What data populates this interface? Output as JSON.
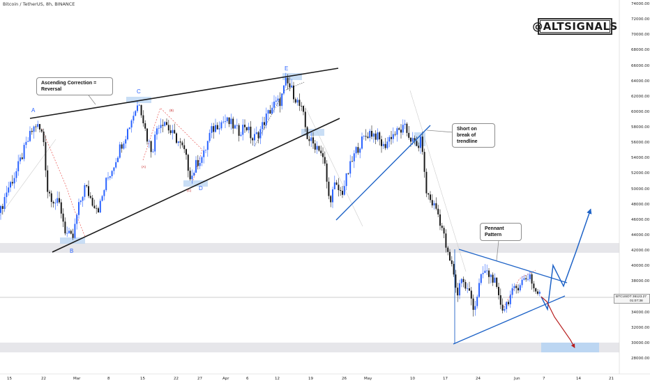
{
  "symbol": "Bitcoin / TetherUS, 8h, BINANCE",
  "brand": "@ALTSIGNALS",
  "annotations": {
    "ascending_correction": "Ascending Correction = Reversal",
    "short_break": "Short on break of trendline",
    "pennant": "Pennant Pattern"
  },
  "wave_labels": {
    "a": "A",
    "b": "B",
    "c": "C",
    "d": "D",
    "e": "E"
  },
  "sub_wave_labels": {
    "a": "(A)",
    "b": "(B)",
    "c": "(C)"
  },
  "price_tag": {
    "symbol": "BTCUSDT",
    "price": "36123.27",
    "countdown": "01:07:38"
  },
  "colors": {
    "up": "#2962ff",
    "down": "#1a1a1a",
    "trendline": "#1a1a1a",
    "pennant": "#1565c0",
    "bear": "#b71c1c",
    "zone": "#e6e6ea",
    "target_zone": "#bcd6f2"
  },
  "chart_data": {
    "type": "candlestick",
    "x_ticks": [
      "15",
      "22",
      "Mar",
      "8",
      "15",
      "22",
      "27",
      "Apr",
      "6",
      "12",
      "19",
      "26",
      "May",
      "10",
      "17",
      "24",
      "Jun",
      "7",
      "14",
      "21"
    ],
    "y_ticks": [
      "74000.00",
      "72000.00",
      "70000.00",
      "68000.00",
      "66000.00",
      "64000.00",
      "62000.00",
      "60000.00",
      "58000.00",
      "56000.00",
      "54000.00",
      "52000.00",
      "50000.00",
      "48000.00",
      "46000.00",
      "44000.00",
      "42000.00",
      "40000.00",
      "38000.00",
      "36000.00",
      "34000.00",
      "32000.00",
      "30000.00",
      "28000.00"
    ],
    "ylim": [
      27000,
      74800
    ],
    "last_price": 36123.27,
    "path": [
      [
        0,
        47000
      ],
      [
        10,
        50000
      ],
      [
        22,
        52000
      ],
      [
        34,
        55000
      ],
      [
        45,
        57500
      ],
      [
        52,
        58500
      ],
      [
        62,
        57000
      ],
      [
        68,
        50000
      ],
      [
        78,
        48500
      ],
      [
        86,
        48000
      ],
      [
        94,
        44500
      ],
      [
        104,
        43500
      ],
      [
        112,
        47500
      ],
      [
        122,
        50500
      ],
      [
        132,
        48500
      ],
      [
        142,
        47500
      ],
      [
        152,
        51000
      ],
      [
        162,
        53000
      ],
      [
        172,
        55500
      ],
      [
        182,
        57500
      ],
      [
        192,
        60000
      ],
      [
        200,
        61500
      ],
      [
        210,
        57000
      ],
      [
        218,
        55000
      ],
      [
        226,
        58500
      ],
      [
        236,
        59000
      ],
      [
        244,
        57500
      ],
      [
        254,
        56500
      ],
      [
        264,
        55000
      ],
      [
        274,
        51500
      ],
      [
        282,
        53500
      ],
      [
        292,
        54500
      ],
      [
        302,
        57500
      ],
      [
        312,
        58500
      ],
      [
        322,
        59000
      ],
      [
        332,
        58500
      ],
      [
        342,
        57500
      ],
      [
        352,
        58500
      ],
      [
        362,
        56500
      ],
      [
        372,
        57500
      ],
      [
        382,
        59500
      ],
      [
        392,
        61000
      ],
      [
        402,
        61500
      ],
      [
        410,
        64000
      ],
      [
        418,
        63000
      ],
      [
        426,
        61500
      ],
      [
        434,
        60000
      ],
      [
        440,
        57000
      ],
      [
        448,
        56000
      ],
      [
        458,
        55500
      ],
      [
        466,
        53000
      ],
      [
        472,
        48500
      ],
      [
        480,
        50500
      ],
      [
        490,
        49500
      ],
      [
        500,
        52500
      ],
      [
        510,
        55000
      ],
      [
        520,
        56500
      ],
      [
        530,
        57500
      ],
      [
        540,
        57000
      ],
      [
        550,
        55500
      ],
      [
        560,
        57000
      ],
      [
        570,
        57500
      ],
      [
        580,
        58000
      ],
      [
        590,
        56500
      ],
      [
        598,
        55500
      ],
      [
        605,
        56500
      ],
      [
        610,
        50000
      ],
      [
        618,
        48500
      ],
      [
        626,
        47500
      ],
      [
        634,
        45000
      ],
      [
        642,
        41500
      ],
      [
        650,
        39500
      ],
      [
        656,
        36000
      ],
      [
        660,
        39000
      ],
      [
        666,
        37500
      ],
      [
        674,
        36500
      ],
      [
        680,
        34500
      ],
      [
        688,
        38000
      ],
      [
        694,
        39500
      ],
      [
        700,
        39000
      ],
      [
        708,
        38500
      ],
      [
        714,
        36000
      ],
      [
        722,
        34500
      ],
      [
        730,
        36000
      ],
      [
        738,
        37000
      ],
      [
        746,
        38000
      ],
      [
        754,
        38500
      ],
      [
        760,
        39000
      ],
      [
        766,
        37000
      ],
      [
        772,
        36500
      ],
      [
        776,
        36123
      ]
    ],
    "projection_bull": [
      [
        776,
        36123
      ],
      [
        785,
        34500
      ],
      [
        793,
        40200
      ],
      [
        808,
        37500
      ],
      [
        826,
        42000
      ],
      [
        847,
        47500
      ]
    ],
    "projection_bear": [
      [
        776,
        36123
      ],
      [
        784,
        35500
      ],
      [
        795,
        33500
      ],
      [
        818,
        30500
      ],
      [
        824,
        29500
      ]
    ]
  }
}
